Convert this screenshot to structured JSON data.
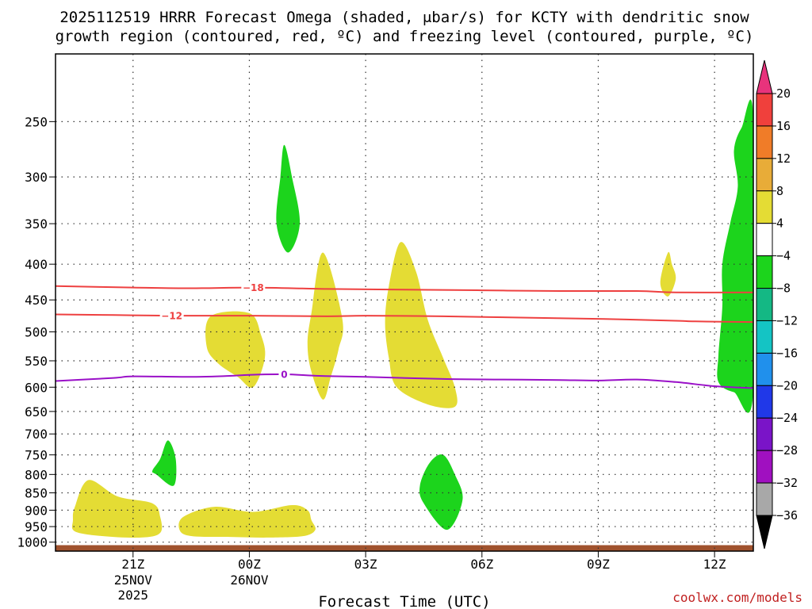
{
  "chart_data": {
    "type": "heatmap",
    "title_line1": "2025112519 HRRR Forecast Omega (shaded, μbar/s) for KCTY with dendritic snow",
    "title_line2": "growth region (contoured, red, ºC) and freezing level (contoured, purple, ºC)",
    "xlabel": "Forecast Time (UTC)",
    "credit": "coolwx.com/models",
    "x_range_hours": [
      0,
      18
    ],
    "y_range_hpa": [
      200,
      1030
    ],
    "y_ticks": [
      "250",
      "300",
      "350",
      "400",
      "450",
      "500",
      "550",
      "600",
      "650",
      "700",
      "750",
      "800",
      "850",
      "900",
      "950",
      "1000"
    ],
    "x_ticks": [
      {
        "hour": 2,
        "label": "21Z"
      },
      {
        "hour": 5,
        "label": "00Z"
      },
      {
        "hour": 8,
        "label": "03Z"
      },
      {
        "hour": 11,
        "label": "06Z"
      },
      {
        "hour": 14,
        "label": "09Z"
      },
      {
        "hour": 17,
        "label": "12Z"
      }
    ],
    "date_labels": [
      {
        "hour": 2,
        "line1": "25NOV",
        "line2": "2025"
      },
      {
        "hour": 5,
        "line1": "26NOV",
        "line2": ""
      }
    ],
    "colorbar": {
      "ticks": [
        "20",
        "16",
        "12",
        "8",
        "4",
        "−4",
        "−8",
        "−12",
        "−16",
        "−20",
        "−24",
        "−28",
        "−32",
        "−36"
      ],
      "colors_top_to_bottom": [
        "#e8337c",
        "#f0403c",
        "#f07c28",
        "#e8ac38",
        "#e4dc34",
        "#ffffff",
        "#1cd41c",
        "#14b884",
        "#14c4c4",
        "#2090ec",
        "#2038e8",
        "#7a14c8",
        "#a010c0",
        "#a8a8a8",
        "#000000"
      ]
    },
    "shaded_regions": [
      {
        "class": "+4 to +8",
        "color": "#e4dc34",
        "points": [
          [
            0.5,
            890
          ],
          [
            0.85,
            815
          ],
          [
            1.6,
            860
          ],
          [
            2.5,
            880
          ],
          [
            2.7,
            920
          ],
          [
            2.7,
            970
          ],
          [
            2.2,
            985
          ],
          [
            1.2,
            980
          ],
          [
            0.5,
            965
          ],
          [
            0.45,
            930
          ]
        ]
      },
      {
        "class": "+4 to +8",
        "color": "#e4dc34",
        "points": [
          [
            3.3,
            920
          ],
          [
            4.1,
            890
          ],
          [
            5.1,
            905
          ],
          [
            6.1,
            885
          ],
          [
            6.5,
            900
          ],
          [
            6.6,
            930
          ],
          [
            6.7,
            960
          ],
          [
            6.4,
            980
          ],
          [
            5.5,
            985
          ],
          [
            4.5,
            983
          ],
          [
            3.5,
            980
          ],
          [
            3.2,
            960
          ]
        ]
      },
      {
        "class": "+4 to +8",
        "color": "#e4dc34",
        "points": [
          [
            4.0,
            475
          ],
          [
            5.0,
            470
          ],
          [
            5.3,
            505
          ],
          [
            5.4,
            545
          ],
          [
            5.1,
            600
          ],
          [
            4.7,
            580
          ],
          [
            4.2,
            555
          ],
          [
            3.9,
            525
          ]
        ]
      },
      {
        "class": "+4 to +8",
        "color": "#e4dc34",
        "points": [
          [
            6.9,
            385
          ],
          [
            7.4,
            480
          ],
          [
            7.3,
            530
          ],
          [
            7.1,
            580
          ],
          [
            6.9,
            625
          ],
          [
            6.6,
            570
          ],
          [
            6.5,
            520
          ],
          [
            6.6,
            470
          ]
        ]
      },
      {
        "class": "+4 to +8",
        "color": "#e4dc34",
        "points": [
          [
            8.9,
            372
          ],
          [
            9.3,
            410
          ],
          [
            9.6,
            480
          ],
          [
            10.0,
            545
          ],
          [
            10.3,
            600
          ],
          [
            10.3,
            640
          ],
          [
            9.6,
            635
          ],
          [
            8.8,
            600
          ],
          [
            8.6,
            545
          ],
          [
            8.5,
            485
          ],
          [
            8.6,
            430
          ]
        ]
      },
      {
        "class": "+4 to +8",
        "color": "#e4dc34",
        "points": [
          [
            15.8,
            385
          ],
          [
            15.9,
            400
          ],
          [
            16.0,
            420
          ],
          [
            15.8,
            445
          ],
          [
            15.6,
            425
          ]
        ]
      },
      {
        "class": "-4 to -8",
        "color": "#1cd41c",
        "points": [
          [
            5.9,
            270
          ],
          [
            6.1,
            300
          ],
          [
            6.3,
            350
          ],
          [
            6.0,
            385
          ],
          [
            5.7,
            350
          ],
          [
            5.8,
            300
          ]
        ]
      },
      {
        "class": "-4 to -8",
        "color": "#1cd41c",
        "points": [
          [
            2.9,
            715
          ],
          [
            3.1,
            760
          ],
          [
            3.05,
            830
          ],
          [
            2.6,
            800
          ],
          [
            2.5,
            790
          ],
          [
            2.7,
            760
          ]
        ]
      },
      {
        "class": "-4 to -8",
        "color": "#1cd41c",
        "points": [
          [
            9.65,
            770
          ],
          [
            10.0,
            750
          ],
          [
            10.3,
            800
          ],
          [
            10.5,
            870
          ],
          [
            10.1,
            960
          ],
          [
            9.5,
            880
          ],
          [
            9.4,
            830
          ]
        ]
      },
      {
        "class": "-4 to -8",
        "color": "#1cd41c",
        "points": [
          [
            18.0,
            247
          ],
          [
            17.7,
            255
          ],
          [
            17.5,
            275
          ],
          [
            17.6,
            310
          ],
          [
            17.4,
            350
          ],
          [
            17.2,
            400
          ],
          [
            17.2,
            460
          ],
          [
            17.1,
            540
          ],
          [
            17.1,
            590
          ],
          [
            17.5,
            610
          ],
          [
            18.0,
            610
          ]
        ]
      }
    ],
    "contours": [
      {
        "name": "dendritic -18",
        "label": "−18",
        "color": "#ee4040",
        "label_at_hour": 5.1,
        "points": [
          [
            0,
            430
          ],
          [
            2,
            432
          ],
          [
            3.5,
            433
          ],
          [
            5.1,
            432
          ],
          [
            7,
            434
          ],
          [
            9,
            435
          ],
          [
            11,
            436
          ],
          [
            13,
            437
          ],
          [
            15,
            437
          ],
          [
            16,
            439
          ],
          [
            18,
            439
          ]
        ]
      },
      {
        "name": "dendritic -12",
        "label": "−12",
        "color": "#ee4040",
        "label_at_hour": 3.0,
        "points": [
          [
            0,
            472
          ],
          [
            1.5,
            473
          ],
          [
            3,
            474
          ],
          [
            5,
            474
          ],
          [
            7,
            475
          ],
          [
            8,
            474
          ],
          [
            10,
            475
          ],
          [
            12,
            477
          ],
          [
            14,
            479
          ],
          [
            16,
            482
          ],
          [
            16.5,
            483
          ],
          [
            18,
            484
          ]
        ]
      },
      {
        "name": "freezing level",
        "label": "0",
        "color": "#9a10c8",
        "label_at_hour": 5.9,
        "points": [
          [
            0,
            588
          ],
          [
            1.5,
            582
          ],
          [
            2,
            579
          ],
          [
            3.5,
            580
          ],
          [
            4.5,
            578
          ],
          [
            5,
            576
          ],
          [
            5.9,
            575
          ],
          [
            6.8,
            578
          ],
          [
            8,
            580
          ],
          [
            10,
            584
          ],
          [
            11.5,
            585
          ],
          [
            13,
            586
          ],
          [
            14,
            587
          ],
          [
            15,
            585
          ],
          [
            16,
            590
          ],
          [
            17,
            598
          ],
          [
            18,
            602
          ]
        ]
      }
    ],
    "ground_level_hpa": 1010,
    "ground_color": "#a0522d"
  }
}
